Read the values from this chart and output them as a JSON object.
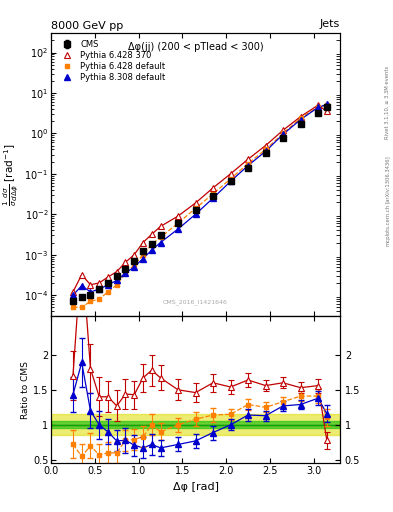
{
  "title": "8000 GeV pp",
  "title_right": "Jets",
  "annotation": "Δφ(jj) (200 < pTlead < 300)",
  "watermark": "CMS_2016_I1421646",
  "xlabel": "Δφ [rad]",
  "ylabel_ratio": "Ratio to CMS",
  "rivet_label": "Rivet 3.1.10, ≥ 3.3M events",
  "arxiv_label": "[arXiv:1306.3436]",
  "mcplots_label": "mcplots.cern.ch",
  "cms_x": [
    0.25,
    0.35,
    0.45,
    0.55,
    0.65,
    0.75,
    0.85,
    0.95,
    1.05,
    1.15,
    1.25,
    1.45,
    1.65,
    1.85,
    2.05,
    2.25,
    2.45,
    2.65,
    2.85,
    3.05,
    3.15
  ],
  "cms_y": [
    7e-05,
    9e-05,
    0.0001,
    0.00014,
    0.0002,
    0.0003,
    0.00045,
    0.0007,
    0.0012,
    0.0018,
    0.003,
    0.006,
    0.013,
    0.028,
    0.065,
    0.14,
    0.32,
    0.75,
    1.7,
    3.2,
    4.5
  ],
  "cms_yerr": [
    8e-06,
    1e-05,
    1.2e-05,
    1.5e-05,
    2e-05,
    3e-05,
    5e-05,
    8e-05,
    0.00015,
    0.0002,
    0.0004,
    0.0007,
    0.0015,
    0.003,
    0.007,
    0.015,
    0.035,
    0.08,
    0.18,
    0.3,
    0.4
  ],
  "p6370_x": [
    0.25,
    0.35,
    0.45,
    0.55,
    0.65,
    0.75,
    0.85,
    0.95,
    1.05,
    1.15,
    1.25,
    1.45,
    1.65,
    1.85,
    2.05,
    2.25,
    2.45,
    2.65,
    2.85,
    3.05,
    3.15
  ],
  "p6370_y": [
    0.00012,
    0.00032,
    0.00018,
    0.0002,
    0.00028,
    0.00038,
    0.00065,
    0.001,
    0.002,
    0.0032,
    0.005,
    0.009,
    0.019,
    0.045,
    0.1,
    0.23,
    0.5,
    1.2,
    2.6,
    5.0,
    3.5
  ],
  "p6370_color": "#c00000",
  "p6370_label": "Pythia 6.428 370",
  "p6def_x": [
    0.25,
    0.35,
    0.45,
    0.55,
    0.65,
    0.75,
    0.85,
    0.95,
    1.05,
    1.15,
    1.25,
    1.45,
    1.65,
    1.85,
    2.05,
    2.25,
    2.45,
    2.65,
    2.85,
    3.05,
    3.15
  ],
  "p6def_y": [
    5e-05,
    5e-05,
    7e-05,
    8e-05,
    0.00012,
    0.00018,
    0.00035,
    0.00055,
    0.001,
    0.0018,
    0.0027,
    0.006,
    0.014,
    0.032,
    0.075,
    0.18,
    0.4,
    1.0,
    2.4,
    4.5,
    5.0
  ],
  "p6def_color": "#ff8000",
  "p6def_label": "Pythia 6.428 default",
  "p8def_x": [
    0.25,
    0.35,
    0.45,
    0.55,
    0.65,
    0.75,
    0.85,
    0.95,
    1.05,
    1.15,
    1.25,
    1.45,
    1.65,
    1.85,
    2.05,
    2.25,
    2.45,
    2.65,
    2.85,
    3.05,
    3.15
  ],
  "p8def_y": [
    0.0001,
    0.00017,
    0.00012,
    0.00014,
    0.00018,
    0.00023,
    0.00035,
    0.0005,
    0.0008,
    0.0013,
    0.002,
    0.0043,
    0.01,
    0.025,
    0.065,
    0.16,
    0.36,
    0.95,
    2.2,
    4.4,
    5.2
  ],
  "p8def_color": "#0000cc",
  "p8def_label": "Pythia 8.308 default",
  "ratio_p6370": [
    1.7,
    3.5,
    1.8,
    1.4,
    1.4,
    1.27,
    1.44,
    1.43,
    1.67,
    1.78,
    1.67,
    1.5,
    1.46,
    1.6,
    1.54,
    1.64,
    1.56,
    1.6,
    1.53,
    1.56,
    0.78
  ],
  "ratio_p6370_err": [
    0.35,
    0.6,
    0.35,
    0.28,
    0.22,
    0.22,
    0.22,
    0.2,
    0.2,
    0.22,
    0.18,
    0.15,
    0.13,
    0.13,
    0.1,
    0.1,
    0.08,
    0.08,
    0.08,
    0.1,
    0.12
  ],
  "ratio_p6def": [
    0.72,
    0.55,
    0.7,
    0.57,
    0.6,
    0.6,
    0.78,
    0.79,
    0.83,
    1.0,
    0.9,
    1.0,
    1.08,
    1.14,
    1.15,
    1.29,
    1.25,
    1.33,
    1.41,
    1.41,
    1.11
  ],
  "ratio_p6def_err": [
    0.2,
    0.18,
    0.18,
    0.15,
    0.15,
    0.15,
    0.15,
    0.15,
    0.15,
    0.15,
    0.12,
    0.1,
    0.1,
    0.1,
    0.08,
    0.08,
    0.07,
    0.07,
    0.07,
    0.1,
    0.12
  ],
  "ratio_p8def": [
    1.43,
    1.89,
    1.2,
    1.0,
    0.9,
    0.77,
    0.78,
    0.71,
    0.67,
    0.72,
    0.67,
    0.72,
    0.77,
    0.89,
    1.0,
    1.14,
    1.13,
    1.27,
    1.29,
    1.38,
    1.16
  ],
  "ratio_p8def_err": [
    0.25,
    0.35,
    0.25,
    0.2,
    0.18,
    0.15,
    0.18,
    0.15,
    0.15,
    0.15,
    0.12,
    0.1,
    0.1,
    0.1,
    0.08,
    0.08,
    0.07,
    0.07,
    0.07,
    0.1,
    0.12
  ],
  "cms_stat_band": 0.05,
  "cms_sys_band": 0.15,
  "ylim_main": [
    3e-05,
    300.0
  ],
  "ylim_ratio": [
    0.45,
    2.55
  ],
  "xlim": [
    0.0,
    3.3
  ]
}
